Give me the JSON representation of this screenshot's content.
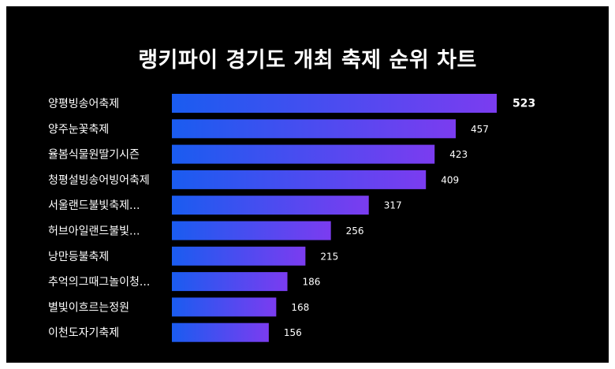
{
  "colors": {
    "background": "#000000",
    "bar_gradient_start": "#1a5cf0",
    "bar_gradient_end": "#7b3cf0",
    "text": "#ffffff"
  },
  "chart_data": {
    "type": "bar",
    "orientation": "horizontal",
    "title": "랭키파이 경기도 개최 축제 순위 차트",
    "categories": [
      "양평빙송어축제",
      "양주눈꽃축제",
      "율봄식물원딸기시즌",
      "청평설빙송어빙어축제",
      "서울랜드불빛축제...",
      "허브아일랜드불빛...",
      "낭만등불축제",
      "추억의그때그놀이청...",
      "별빛이흐르는정원",
      "이천도자기축제"
    ],
    "values": [
      523,
      457,
      423,
      409,
      317,
      256,
      215,
      186,
      168,
      156
    ],
    "xlim": [
      0,
      540
    ],
    "grid": false,
    "legend": "none"
  }
}
